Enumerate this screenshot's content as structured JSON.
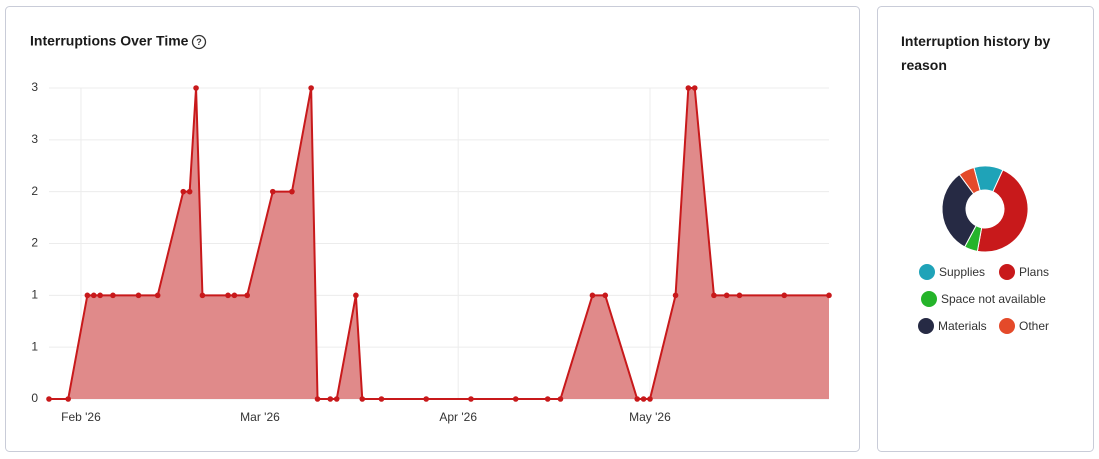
{
  "chart_data": [
    {
      "type": "area",
      "title": "Interruptions Over Time",
      "color": "#c8191b",
      "fill": "#e08a8a",
      "grid": true,
      "x": [
        -5,
        -2,
        1,
        2,
        3,
        5,
        9,
        12,
        16,
        17,
        18,
        19,
        23,
        24,
        26,
        30,
        33,
        36,
        37,
        39,
        40,
        43,
        44,
        47,
        54,
        61,
        68,
        73,
        75,
        80,
        82,
        87,
        88,
        89,
        93,
        95,
        96,
        99,
        101,
        103,
        110,
        117
      ],
      "values": [
        0,
        0,
        1,
        1,
        1,
        1,
        1,
        1,
        2,
        2,
        3,
        1,
        1,
        1,
        1,
        2,
        2,
        3,
        0,
        0,
        0,
        1,
        0,
        0,
        0,
        0,
        0,
        0,
        0,
        1,
        1,
        0,
        0,
        0,
        1,
        3,
        3,
        1,
        1,
        1,
        1,
        1
      ],
      "xlim": [
        -5,
        117
      ],
      "xticks": [
        {
          "value": 0,
          "label": "Feb '26"
        },
        {
          "value": 28,
          "label": "Mar '26"
        },
        {
          "value": 59,
          "label": "Apr '26"
        },
        {
          "value": 89,
          "label": "May '26"
        }
      ],
      "ylim": [
        0,
        3
      ],
      "yticks": [
        0,
        {
          "value": 0.5,
          "label": "1"
        },
        1,
        {
          "value": 1.5,
          "label": "2"
        },
        2,
        {
          "value": 2.5,
          "label": "3"
        },
        3
      ]
    },
    {
      "type": "pie",
      "title": "Interruption history by reason",
      "donut": true,
      "categories": [
        "Supplies",
        "Plans",
        "Space not available",
        "Materials",
        "Other"
      ],
      "values": [
        11,
        46,
        5,
        32,
        6
      ],
      "colors": [
        "#1fa3b8",
        "#c8191b",
        "#25b42a",
        "#262a44",
        "#e44a2a"
      ]
    }
  ]
}
